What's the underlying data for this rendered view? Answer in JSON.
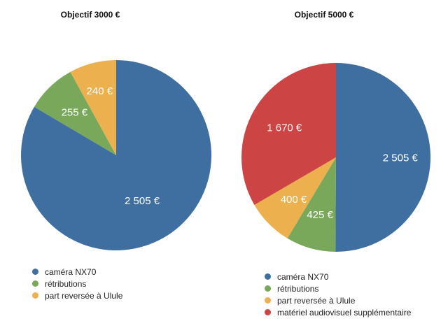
{
  "colors": {
    "camera": "#3F6FA0",
    "retributions": "#79A85A",
    "ulule": "#EDB04F",
    "materiel": "#CC4443"
  },
  "chart_data": [
    {
      "type": "pie",
      "title": "Objectif 3000 €",
      "slices": [
        {
          "name": "caméra NX70",
          "value": 2505,
          "label": "2 505 €",
          "color_key": "camera"
        },
        {
          "name": "rétributions",
          "value": 255,
          "label": "255 €",
          "color_key": "retributions"
        },
        {
          "name": "part reversée à Ulule",
          "value": 240,
          "label": "240 €",
          "color_key": "ulule"
        }
      ],
      "legend_position": "bottom-left"
    },
    {
      "type": "pie",
      "title": "Objectif 5000 €",
      "slices": [
        {
          "name": "caméra NX70",
          "value": 2505,
          "label": "2 505 €",
          "color_key": "camera"
        },
        {
          "name": "rétributions",
          "value": 425,
          "label": "425 €",
          "color_key": "retributions"
        },
        {
          "name": "part reversée à Ulule",
          "value": 400,
          "label": "400 €",
          "color_key": "ulule"
        },
        {
          "name": "matériel audiovisuel supplémentaire",
          "value": 1670,
          "label": "1 670 €",
          "color_key": "materiel"
        }
      ],
      "legend_position": "bottom-left"
    }
  ]
}
